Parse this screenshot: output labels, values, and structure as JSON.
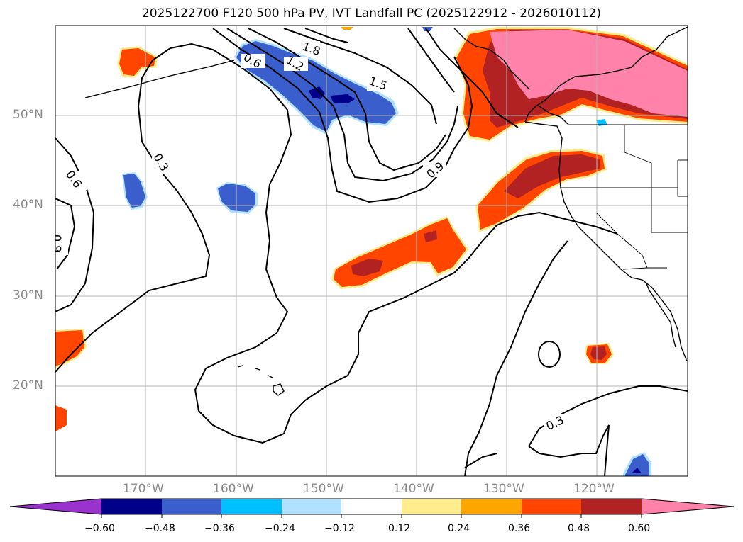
{
  "title": "2025122700 F120 500 hPa PV, IVT Landfall PC (2025122912 - 2026010112)",
  "lat_labels": [
    "50°N",
    "40°N",
    "30°N",
    "20°N"
  ],
  "lon_labels": [
    "170°W",
    "160°W",
    "150°W",
    "140°W",
    "130°W",
    "120°W"
  ],
  "colorbar": {
    "tick_labels": [
      "−0.60",
      "−0.48",
      "−0.36",
      "−0.24",
      "−0.12",
      "0.12",
      "0.24",
      "0.36",
      "0.48",
      "0.60"
    ],
    "colors": [
      "#9a32cd",
      "#00008b",
      "#3a5fcd",
      "#00bfff",
      "#b0e2ff",
      "#ffffff",
      "#ffec8b",
      "#ffa500",
      "#ff4500",
      "#b22222",
      "#ff82ab"
    ],
    "extend": "both"
  },
  "contour_labels": [
    "1.8",
    "1.2",
    "0.6",
    "1.5",
    "0.9",
    "0.3",
    "0.6",
    "0.9",
    "0.3"
  ],
  "map": {
    "extent_lon": [
      -180,
      -110
    ],
    "extent_lat": [
      10,
      60
    ],
    "gridlines": true
  }
}
